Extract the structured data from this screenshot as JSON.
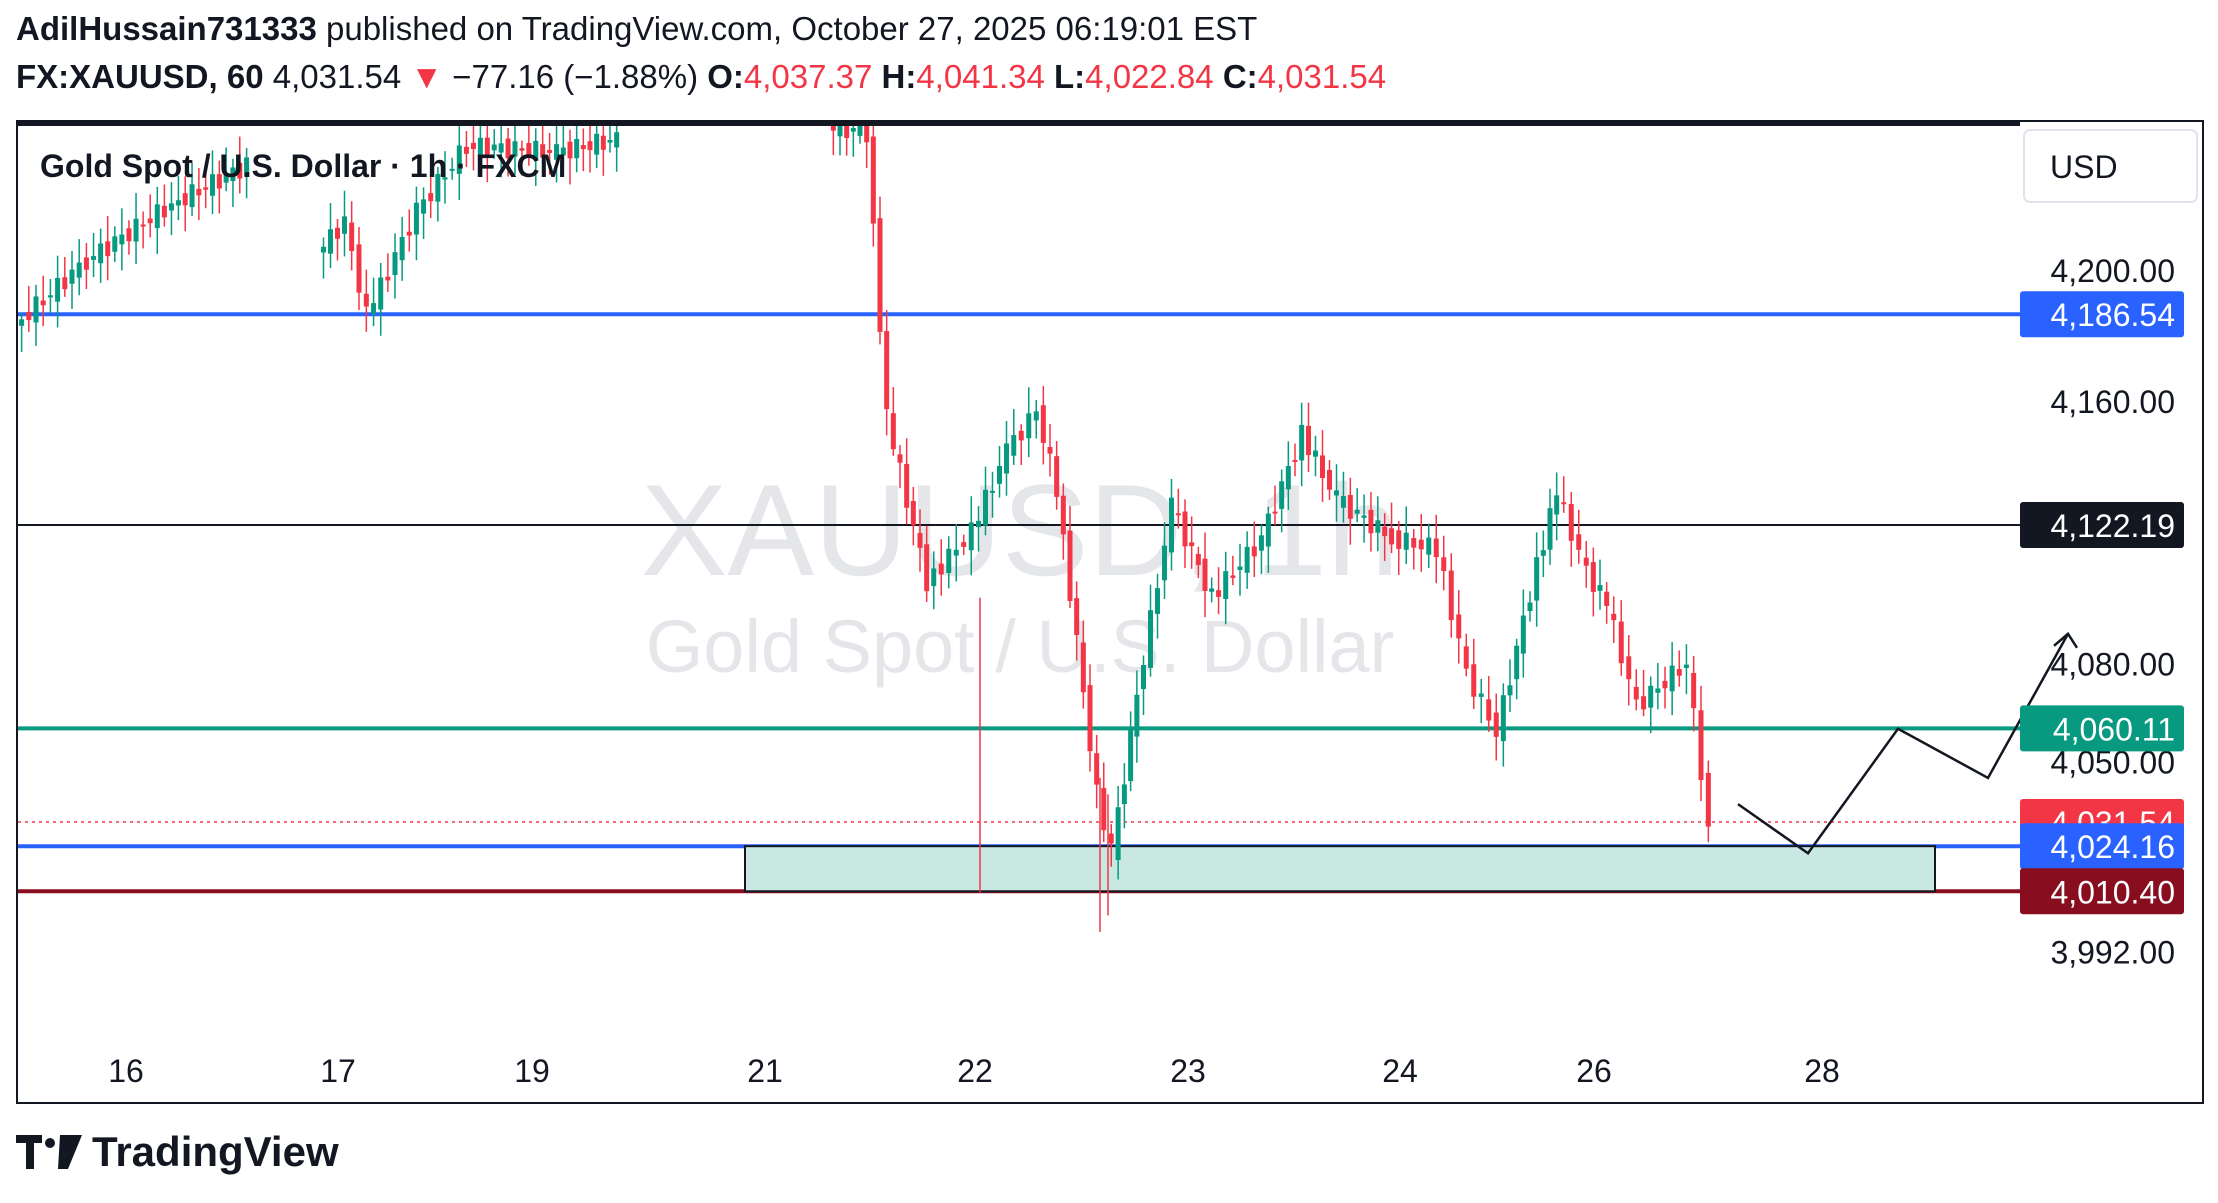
{
  "header": {
    "author": "AdilHussain731333",
    "published_text": "published on TradingView.com, October 27, 2025 06:19:01 EST",
    "symbol": "FX:XAUUSD, 60",
    "last": "4,031.54",
    "change": "−77.16 (−1.88%)",
    "o_label": "O:",
    "o_value": "4,037.37",
    "h_label": "H:",
    "h_value": "4,041.34",
    "l_label": "L:",
    "l_value": "4,022.84",
    "c_label": "C:",
    "c_value": "4,031.54"
  },
  "footer": {
    "brand": "TradingView"
  },
  "colors": {
    "up": "#089981",
    "down": "#f23645",
    "blue_line": "#2962ff",
    "green_line": "#089981",
    "dark_red_line": "#880e1f",
    "zone_fill": "#c8e8e1"
  },
  "chart_data": {
    "type": "candlestick",
    "title": "Gold Spot / U.S. Dollar · 1h · FXCM",
    "watermark_symbol": "XAUUSD, 1h",
    "watermark_name": "Gold Spot / U.S. Dollar",
    "currency": "USD",
    "y_range": [
      3965,
      4244
    ],
    "y_ticks": [
      "4,200.00",
      "4,160.00",
      "4,080.00",
      "4,050.00",
      "3,992.00"
    ],
    "x_ticks": [
      "16",
      "17",
      "19",
      "21",
      "22",
      "23",
      "24",
      "26",
      "28"
    ],
    "levels": [
      {
        "value": 4186.54,
        "label": "4,186.54",
        "style": "blue"
      },
      {
        "value": 4122.19,
        "label": "4,122.19",
        "style": "black"
      },
      {
        "value": 4060.11,
        "label": "4,060.11",
        "style": "green"
      },
      {
        "value": 4031.54,
        "label": "4,031.54",
        "style": "last"
      },
      {
        "value": 4024.16,
        "label": "4,024.16",
        "style": "blue"
      },
      {
        "value": 4010.4,
        "label": "4,010.40",
        "style": "darkred"
      }
    ],
    "zone": {
      "top": 4024.16,
      "bottom": 4010.4
    },
    "projection": [
      {
        "x": 1,
        "y": 4037
      },
      {
        "x": 8,
        "y": 4022
      },
      {
        "x": 17,
        "y": 4060
      },
      {
        "x": 26,
        "y": 4045
      },
      {
        "x": 34,
        "y": 4089
      }
    ]
  }
}
